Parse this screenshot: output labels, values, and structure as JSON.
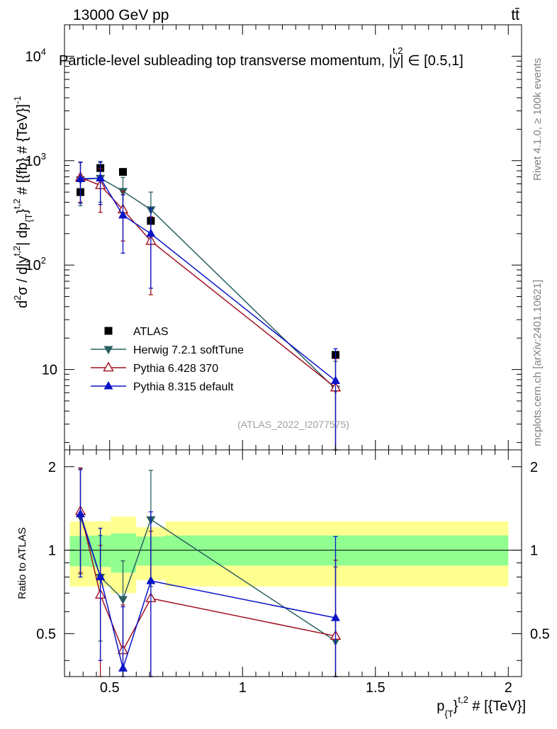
{
  "header": {
    "left": "13000 GeV pp",
    "right": "tt̄"
  },
  "side_labels": {
    "rivet": "Rivet 4.1.0, ≥ 100k events",
    "mcplots": "mcplots.cern.ch [arXiv:2401.10621]"
  },
  "chart_data": [
    {
      "type": "scatter",
      "title": "Particle-level subleading top transverse momentum, |ȳ^{t,2}| ∈ [0.5,1]",
      "title_main": "Particle-level subleading top transverse momentum, |",
      "title_sup": "t,2",
      "title_base": "y",
      "title_tail": "| ∈ [0.5,1]",
      "ylabel": "d²σ / d|y^{t,2}| dp_{T}^{t,2} # [{fb} # {TeV}]^{-1}",
      "ylabel_parts": [
        "d",
        "2",
        "σ / d|y",
        "t,2",
        "| dp",
        "{T",
        "}",
        "t,2",
        " # [{fb} # {TeV}]",
        "-1"
      ],
      "yscale": "log",
      "ylim": [
        1.7,
        20000
      ],
      "xlim": [
        0.33,
        2.05
      ],
      "y_ticks": [
        {
          "value": 10,
          "label": "10",
          "exp": ""
        },
        {
          "value": 100,
          "label": "10",
          "exp": "2"
        },
        {
          "value": 1000,
          "label": "10",
          "exp": "3"
        },
        {
          "value": 10000,
          "label": "10",
          "exp": "4"
        }
      ],
      "watermark": "(ATLAS_2022_I2077575)",
      "legend": {
        "position": "bottom-left",
        "entries": [
          {
            "label": "ATLAS",
            "marker": "square",
            "color": "#000000"
          },
          {
            "label": "Herwig 7.2.1 softTune",
            "marker": "triangle-down",
            "color": "#2a6060"
          },
          {
            "label": "Pythia 6.428 370",
            "marker": "triangle-open",
            "color": "#a01020"
          },
          {
            "label": "Pythia 8.315 default",
            "marker": "triangle-up",
            "color": "#0a14c8"
          }
        ]
      },
      "series": [
        {
          "name": "ATLAS",
          "color": "#000000",
          "marker": "square",
          "line": false,
          "x": [
            0.39,
            0.465,
            0.55,
            0.655,
            1.35
          ],
          "y": [
            500,
            850,
            780,
            265,
            13.8
          ],
          "err_lo": [
            0,
            0,
            0,
            0,
            0
          ],
          "err_hi": [
            0,
            0,
            0,
            0,
            0
          ]
        },
        {
          "name": "Herwig 7.2.1 softTune",
          "color": "#2a6060",
          "marker": "triangle-down",
          "line": true,
          "x": [
            0.39,
            0.465,
            0.55,
            0.655,
            1.35
          ],
          "y": [
            660,
            680,
            510,
            340,
            6.5
          ],
          "err_lo": [
            290,
            280,
            170,
            170,
            5.3
          ],
          "err_hi": [
            300,
            280,
            180,
            160,
            5.5
          ]
        },
        {
          "name": "Pythia 6.428 370",
          "color": "#a01020",
          "marker": "triangle-open",
          "line": true,
          "x": [
            0.39,
            0.465,
            0.55,
            0.655,
            1.35
          ],
          "y": [
            690,
            580,
            340,
            170,
            6.7
          ],
          "err_lo": [
            290,
            260,
            170,
            118,
            5.5
          ],
          "err_hi": [
            280,
            260,
            170,
            120,
            6
          ]
        },
        {
          "name": "Pythia 8.315 default",
          "color": "#0a14c8",
          "marker": "triangle-up",
          "line": true,
          "x": [
            0.39,
            0.465,
            0.55,
            0.655,
            1.35
          ],
          "y": [
            670,
            680,
            300,
            200,
            7.8
          ],
          "err_lo": [
            280,
            300,
            170,
            140,
            6.2
          ],
          "err_hi": [
            300,
            300,
            170,
            150,
            8
          ]
        }
      ]
    },
    {
      "type": "line",
      "ylabel": "Ratio to ATLAS",
      "xlabel": "p_{T}^{t,2} # [{TeV}]",
      "xlabel_parts": [
        "p",
        "{T",
        "}",
        "t,2",
        " # [{TeV}]"
      ],
      "ylim": [
        0.35,
        2.3
      ],
      "xlim": [
        0.33,
        2.05
      ],
      "y_ticks": [
        {
          "value": 0.5,
          "label": "0.5"
        },
        {
          "value": 1,
          "label": "1"
        },
        {
          "value": 2,
          "label": "2"
        }
      ],
      "x_ticks": [
        {
          "value": 0.5,
          "label": "0.5"
        },
        {
          "value": 1,
          "label": "1"
        },
        {
          "value": 1.5,
          "label": "1.5"
        },
        {
          "value": 2,
          "label": "2"
        }
      ],
      "reference": 1,
      "bands": [
        {
          "x0": 0.35,
          "x1": 0.425,
          "inner": [
            0.875,
            1.125
          ],
          "outer": [
            0.74,
            1.27
          ]
        },
        {
          "x0": 0.425,
          "x1": 0.505,
          "inner": [
            0.87,
            1.13
          ],
          "outer": [
            0.74,
            1.27
          ]
        },
        {
          "x0": 0.505,
          "x1": 0.6,
          "inner": [
            0.83,
            1.15
          ],
          "outer": [
            0.7,
            1.32
          ]
        },
        {
          "x0": 0.6,
          "x1": 0.71,
          "inner": [
            0.88,
            1.12
          ],
          "outer": [
            0.78,
            1.21
          ]
        },
        {
          "x0": 0.71,
          "x1": 2.0,
          "inner": [
            0.88,
            1.13
          ],
          "outer": [
            0.74,
            1.27
          ]
        }
      ],
      "band_colors": {
        "inner": "#90ff90",
        "outer": "#ffff90"
      },
      "series": [
        {
          "name": "Herwig 7.2.1 softTune",
          "color": "#2a6060",
          "marker": "triangle-down",
          "x": [
            0.39,
            0.465,
            0.55,
            0.655,
            1.35
          ],
          "y": [
            1.32,
            0.8,
            0.665,
            1.29,
            0.47
          ],
          "err_lo": [
            0.5,
            0.33,
            0.22,
            0.55,
            0.38
          ],
          "err_hi": [
            0.65,
            0.33,
            0.25,
            0.65,
            0.4
          ]
        },
        {
          "name": "Pythia 6.428 370",
          "color": "#a01020",
          "marker": "triangle-open",
          "x": [
            0.39,
            0.465,
            0.55,
            0.655,
            1.35
          ],
          "y": [
            1.38,
            0.69,
            0.435,
            0.67,
            0.49
          ],
          "err_lo": [
            0.55,
            0.35,
            0.2,
            0.5,
            0.4
          ],
          "err_hi": [
            0.6,
            0.35,
            0.2,
            0.5,
            0.43
          ]
        },
        {
          "name": "Pythia 8.315 default",
          "color": "#0a14c8",
          "marker": "triangle-up",
          "x": [
            0.39,
            0.465,
            0.55,
            0.655,
            1.35
          ],
          "y": [
            1.35,
            0.8,
            0.375,
            0.775,
            0.57
          ],
          "err_lo": [
            0.55,
            0.4,
            0.2,
            0.55,
            0.45
          ],
          "err_hi": [
            0.6,
            0.4,
            0.25,
            0.6,
            0.55
          ]
        }
      ]
    }
  ]
}
